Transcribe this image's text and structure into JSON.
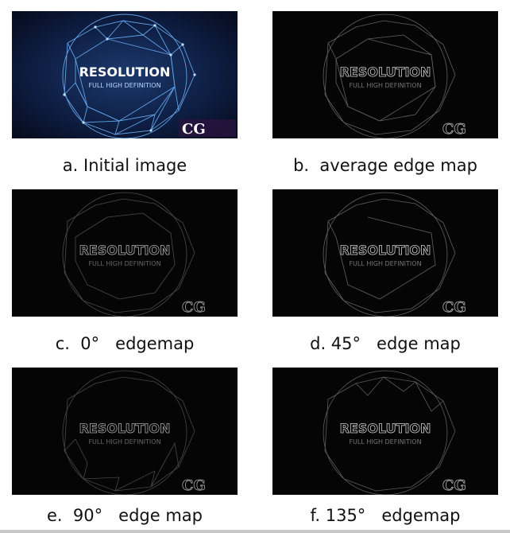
{
  "figure": {
    "panels": [
      {
        "id": "a",
        "caption": "a. Initial image",
        "title_text": "RESOLUTION",
        "subtitle_text": "FULL HIGH DEFINITION",
        "logo_text": "CG",
        "style": "color"
      },
      {
        "id": "b",
        "caption": "b.  average edge map",
        "title_text": "RESOLUTION",
        "subtitle_text": "FULL HIGH DEFINITION",
        "logo_text": "CG",
        "style": "edge"
      },
      {
        "id": "c",
        "caption": "c.  0°   edgemap",
        "title_text": "RESOLUTION",
        "subtitle_text": "FULL HIGH DEFINITION",
        "logo_text": "CG",
        "style": "edge"
      },
      {
        "id": "d",
        "caption": "d. 45°   edge map",
        "title_text": "RESOLUTION",
        "subtitle_text": "FULL HIGH DEFINITION",
        "logo_text": "CG",
        "style": "edge"
      },
      {
        "id": "e",
        "caption": "e.  90°   edge map",
        "title_text": "RESOLUTION",
        "subtitle_text": "FULL HIGH DEFINITION",
        "logo_text": "CG",
        "style": "edge"
      },
      {
        "id": "f",
        "caption": "f. 135°   edgemap",
        "title_text": "RESOLUTION",
        "subtitle_text": "FULL HIGH DEFINITION",
        "logo_text": "CG",
        "style": "edge"
      }
    ]
  }
}
